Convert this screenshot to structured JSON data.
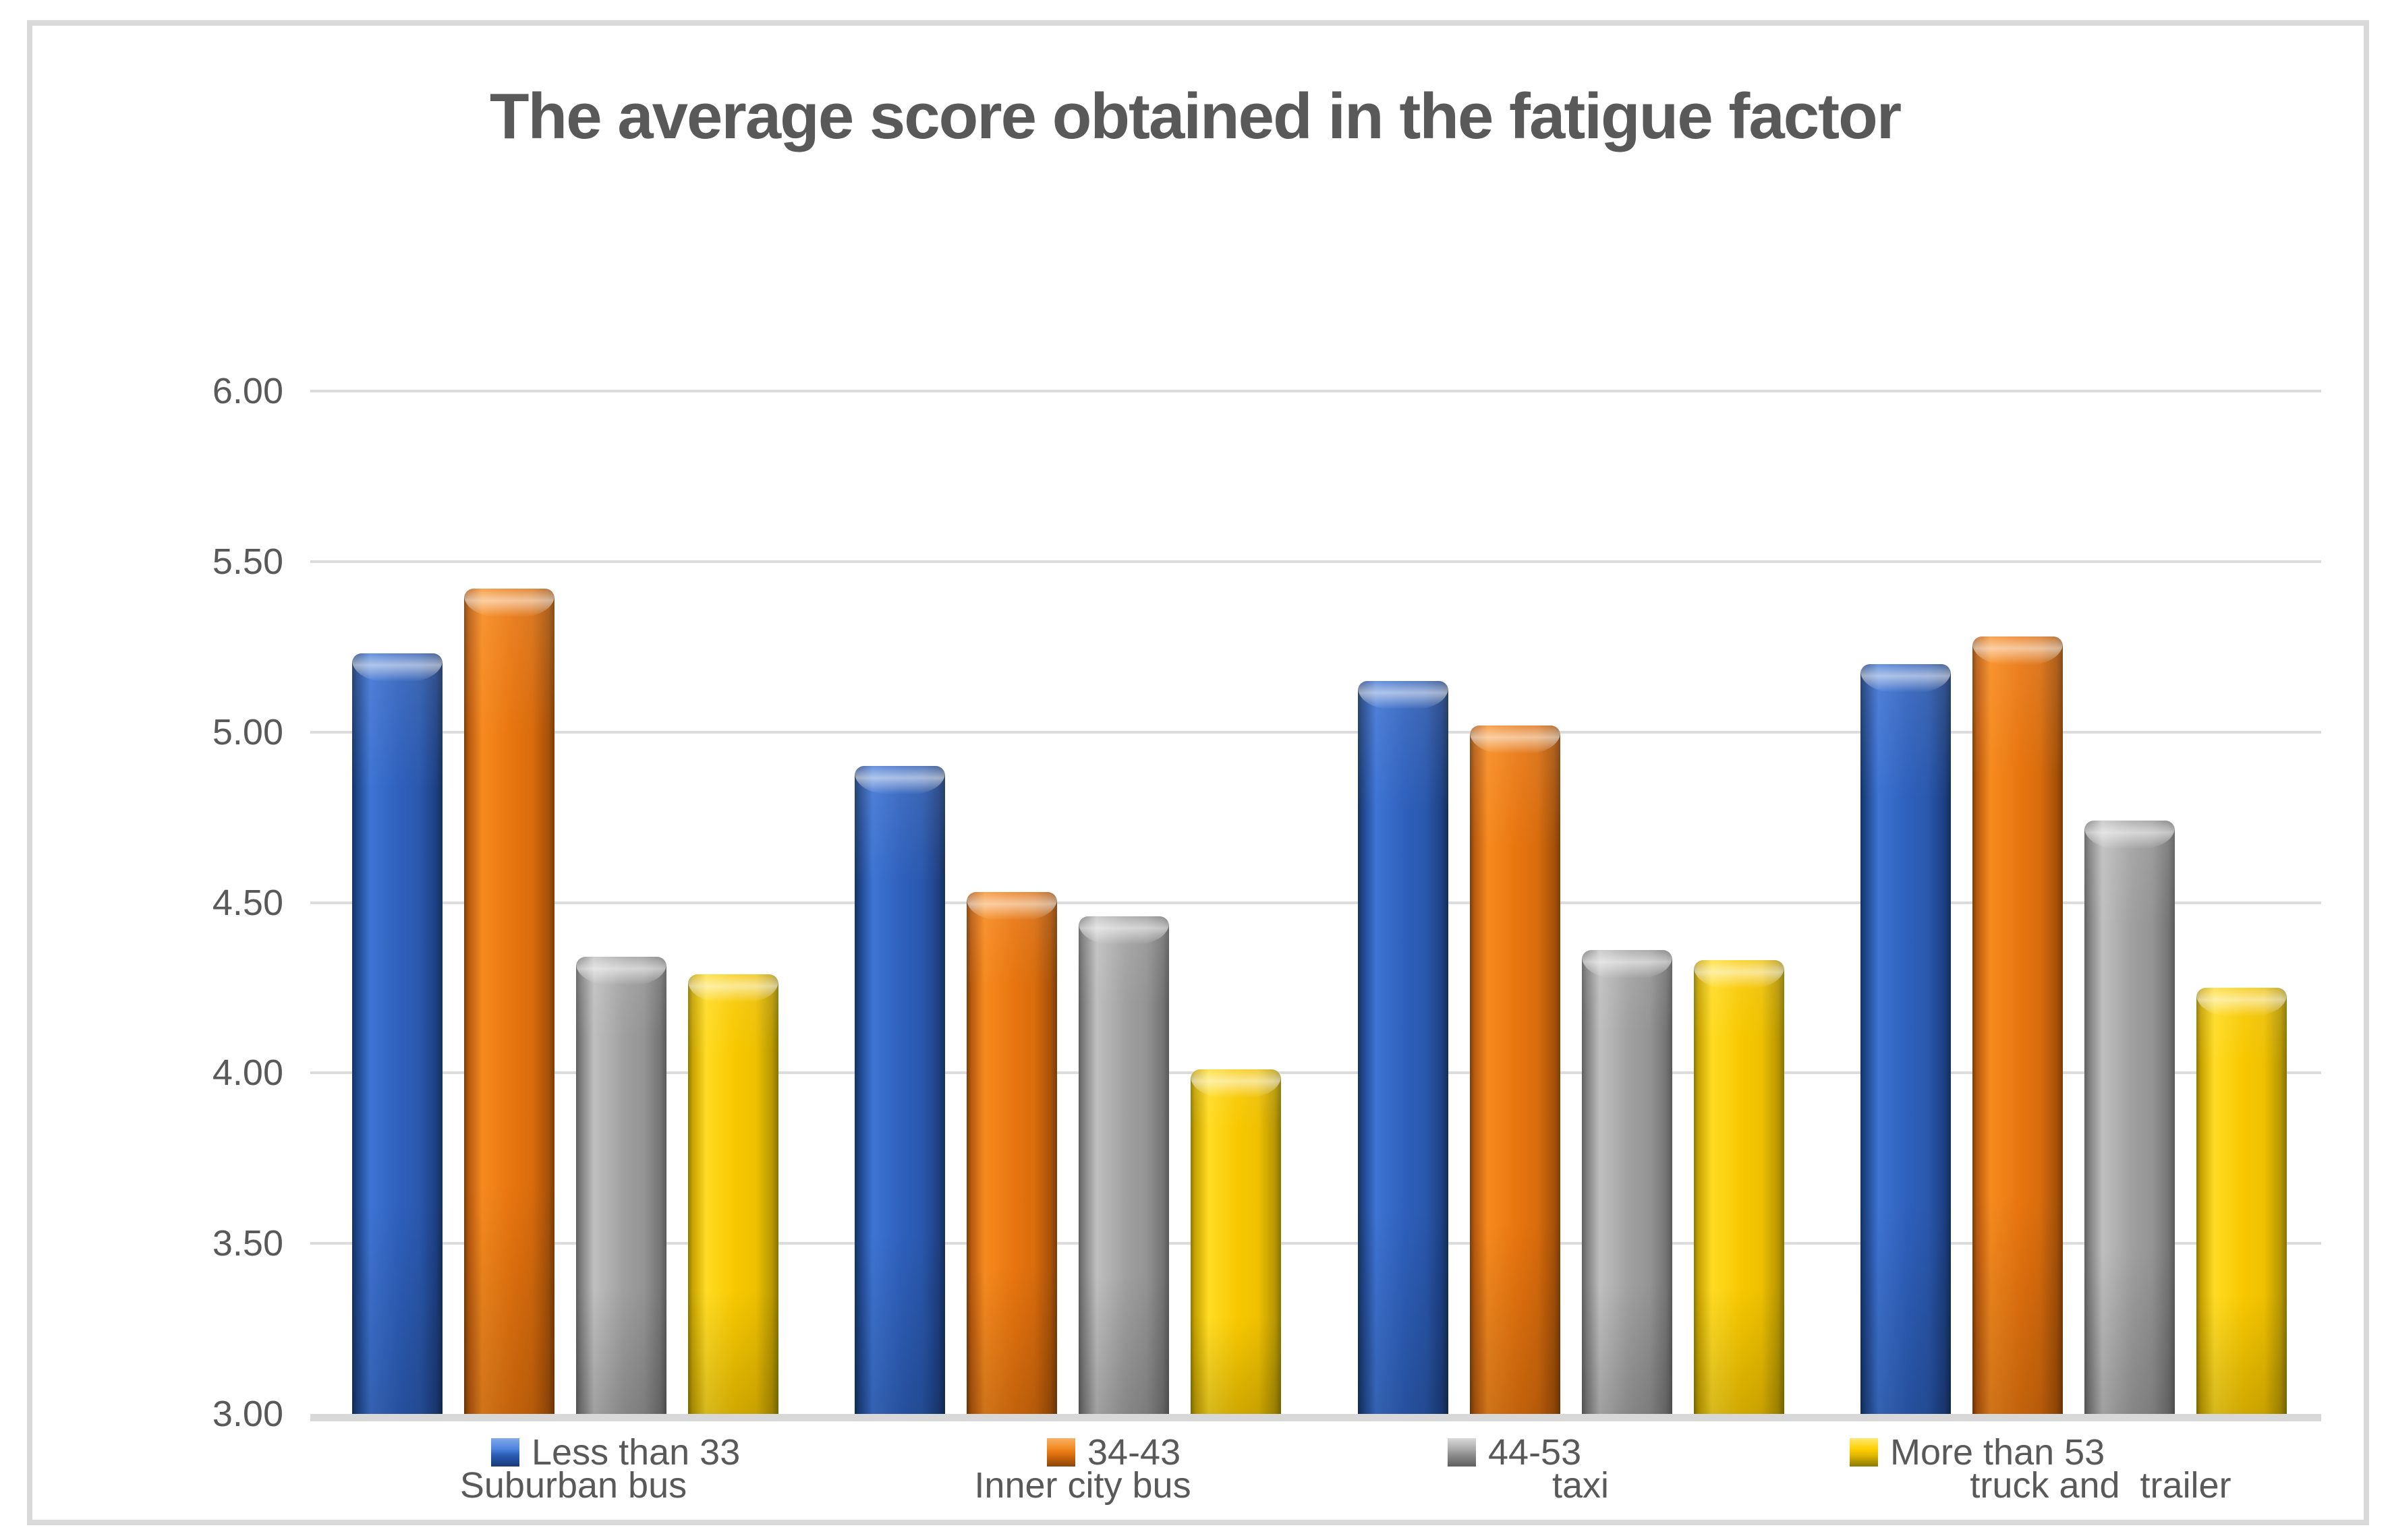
{
  "chart_data": {
    "type": "bar",
    "title": "The average score obtained in the fatigue factor",
    "categories": [
      "Suburban bus",
      "Inner city bus",
      "taxi",
      "truck and  trailer"
    ],
    "series": [
      {
        "name": "Less than 33",
        "color": "#2e60bc",
        "values": [
          5.23,
          4.9,
          5.15,
          5.2
        ]
      },
      {
        "name": "34-43",
        "color": "#e8750f",
        "values": [
          5.42,
          4.53,
          5.02,
          5.28
        ]
      },
      {
        "name": "44-53",
        "color": "#a0a0a0",
        "values": [
          4.34,
          4.46,
          4.36,
          4.74
        ]
      },
      {
        "name": "More than 53",
        "color": "#f7c800",
        "values": [
          4.29,
          4.01,
          4.33,
          4.25
        ]
      }
    ],
    "ylim": [
      3.0,
      6.0
    ],
    "ytick_step": 0.5,
    "ytick_labels": [
      "6.00",
      "5.50",
      "5.00",
      "4.50",
      "4.00",
      "3.50",
      "3.00"
    ],
    "grid": true,
    "legend_position": "bottom",
    "text_color": "#595959",
    "gridline_color": "#dcdcdc",
    "axis_line_color": "#d8d8d8"
  }
}
